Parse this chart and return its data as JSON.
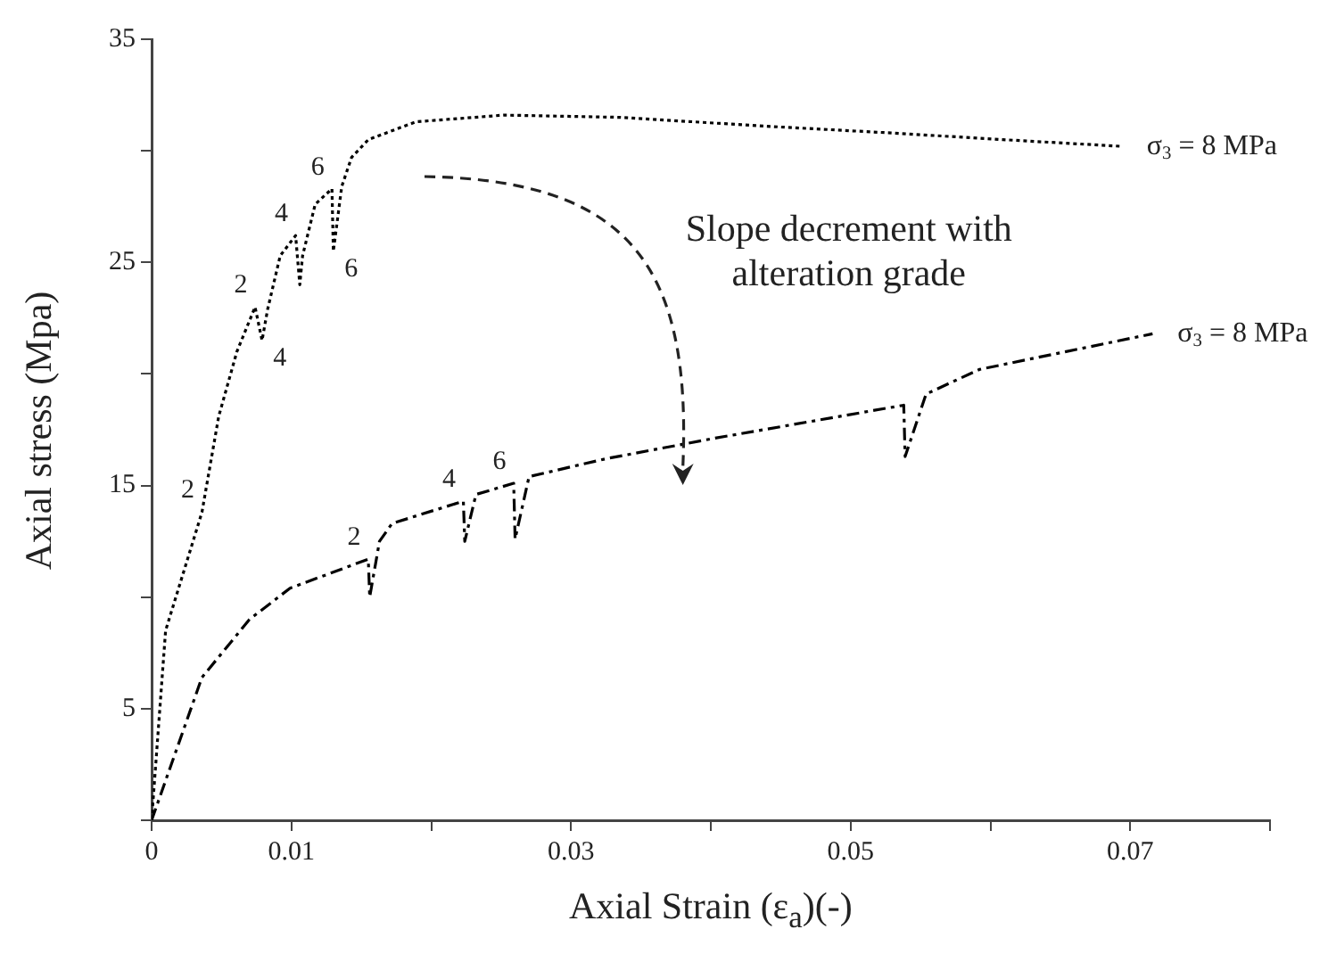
{
  "chart_data": {
    "type": "line",
    "xlabel": "Axial Strain  (ε$_{a}$)(-)",
    "ylabel": "Axial stress (Mpa)",
    "xlim": [
      0,
      0.08
    ],
    "ylim": [
      0,
      35
    ],
    "xticks": [
      0,
      0.01,
      {
        "value": 0.02,
        "label": null
      },
      0.03,
      {
        "value": 0.04,
        "label": null
      },
      0.05,
      {
        "value": 0.06,
        "label": null
      },
      0.07,
      {
        "value": 0.08,
        "label": null
      }
    ],
    "yticks": [
      {
        "value": 0,
        "label": null
      },
      5,
      {
        "value": 10,
        "label": null
      },
      15,
      {
        "value": 20,
        "label": null
      },
      25,
      {
        "value": 30,
        "label": null
      },
      35
    ],
    "grid": false,
    "legend": false,
    "marker": "none",
    "series": [
      {
        "color": "#000000",
        "line_style": "dotted",
        "x": [
          0,
          0.001,
          0.0036,
          0.0048,
          0.0061,
          0.0074,
          0.0079,
          0.0083,
          0.0092,
          0.0103,
          0.0106,
          0.0108,
          0.0117,
          0.0129,
          0.013,
          0.0136,
          0.0143,
          0.0155,
          0.0189,
          0.0252,
          0.0335,
          0.044,
          0.0529,
          0.0609,
          0.0694
        ],
        "values": [
          0,
          8.5,
          13.8,
          18.1,
          21,
          23,
          21.5,
          22.9,
          25.3,
          26.2,
          24,
          25.3,
          27.6,
          28.3,
          25.5,
          28.4,
          29.7,
          30.5,
          31.3,
          31.6,
          31.5,
          31.1,
          30.8,
          30.5,
          30.2
        ]
      },
      {
        "color": "#000000",
        "line_style": "dashed",
        "x": [
          0,
          0.0036,
          0.007,
          0.0099,
          0.0155,
          0.0156,
          0.0163,
          0.0172,
          0.0223,
          0.0224,
          0.0232,
          0.0259,
          0.026,
          0.027,
          0.0325,
          0.0401,
          0.0538,
          0.0539,
          0.0554,
          0.0592,
          0.0716
        ],
        "values": [
          0,
          6.4,
          9,
          10.4,
          11.7,
          10,
          12.5,
          13.3,
          14.3,
          12.5,
          14.6,
          15.1,
          12.6,
          15.4,
          16.2,
          17.1,
          18.6,
          16.3,
          19.1,
          20.2,
          21.8
        ]
      }
    ],
    "annotations": [
      {
        "text": "σ$_{3}$ = 8 MPa",
        "x": 0.0694,
        "y": 30.2
      },
      {
        "text": "σ$_{3}$ = 8 MPa",
        "x": 0.0716,
        "y": 21.8
      },
      "Slope decrement with alteration grade",
      {
        "text": "2",
        "x": 0.0036,
        "y": 13.8
      },
      {
        "text": "2",
        "x": 0.0074,
        "y": 23
      },
      {
        "text": "4",
        "x": 0.0103,
        "y": 26.2
      },
      {
        "text": "4",
        "x": 0.0079,
        "y": 21.5
      },
      {
        "text": "6",
        "x": 0.0129,
        "y": 28.3
      },
      {
        "text": "6",
        "x": 0.013,
        "y": 25.5
      },
      {
        "text": "2",
        "x": 0.0155,
        "y": 11.7
      },
      {
        "text": "4",
        "x": 0.0223,
        "y": 14.3
      },
      {
        "text": "6",
        "x": 0.0259,
        "y": 15.1
      }
    ]
  }
}
